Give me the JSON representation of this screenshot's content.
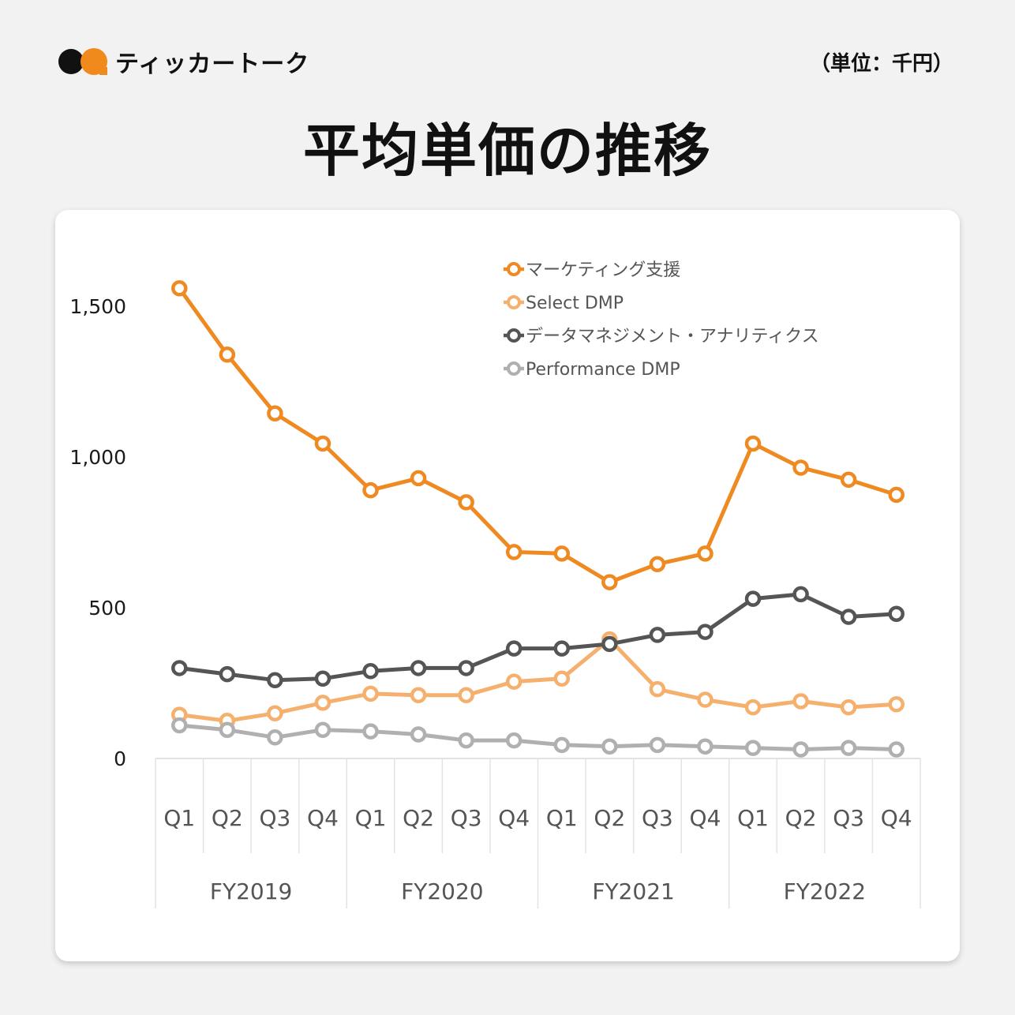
{
  "brand": {
    "name": "ティッカートーク",
    "colors": {
      "primary": "#f08a1c",
      "dark": "#111111"
    }
  },
  "unit_label": "（単位：千円）",
  "page_title": "平均単価の推移",
  "chart_data": {
    "type": "line",
    "title": "平均単価の推移",
    "xlabel": "",
    "ylabel": "",
    "ylim": [
      0,
      1600
    ],
    "yticks": [
      0,
      500,
      1000,
      1500
    ],
    "ytick_labels": [
      "0",
      "500",
      "1,000",
      "1,500"
    ],
    "grid": false,
    "legend_position": "top-right",
    "categories": [
      "Q1",
      "Q2",
      "Q3",
      "Q4",
      "Q1",
      "Q2",
      "Q3",
      "Q4",
      "Q1",
      "Q2",
      "Q3",
      "Q4",
      "Q1",
      "Q2",
      "Q3",
      "Q4"
    ],
    "groups": [
      "FY2019",
      "FY2020",
      "FY2021",
      "FY2022"
    ],
    "series": [
      {
        "name": "マーケティング支援",
        "color": "#ef8a22",
        "values": [
          1560,
          1340,
          1145,
          1045,
          890,
          930,
          850,
          685,
          680,
          585,
          645,
          680,
          1045,
          965,
          925,
          875
        ]
      },
      {
        "name": "Select DMP",
        "color": "#f5b06e",
        "values": [
          145,
          125,
          150,
          185,
          215,
          210,
          210,
          255,
          265,
          395,
          230,
          195,
          170,
          190,
          170,
          180
        ]
      },
      {
        "name": "データマネジメント・アナリティクス",
        "color": "#555555",
        "values": [
          300,
          280,
          260,
          265,
          290,
          300,
          300,
          365,
          365,
          380,
          410,
          420,
          530,
          545,
          470,
          480
        ]
      },
      {
        "name": "Performance DMP",
        "color": "#b0b0b0",
        "values": [
          110,
          95,
          70,
          95,
          90,
          80,
          60,
          60,
          45,
          40,
          45,
          40,
          35,
          30,
          35,
          30
        ]
      }
    ]
  }
}
